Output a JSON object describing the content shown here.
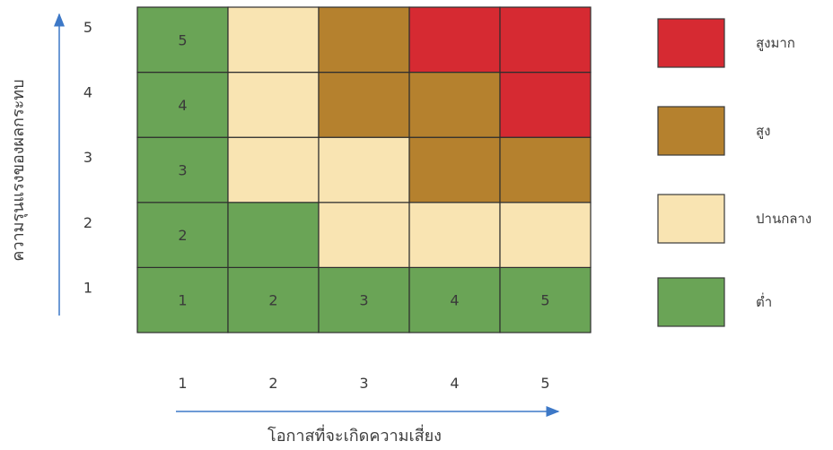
{
  "chart_data": {
    "type": "heatmap",
    "title": "",
    "xlabel": "โอกาสที่จะเกิดความเสี่ยง",
    "ylabel": "ความรุนแรงของผลกระทบ",
    "x_ticks": [
      "1",
      "2",
      "3",
      "4",
      "5"
    ],
    "y_ticks": [
      "1",
      "2",
      "3",
      "4",
      "5"
    ],
    "levels": [
      {
        "key": "very_high",
        "label": "สูงมาก",
        "color": "#d62a32"
      },
      {
        "key": "high",
        "label": "สูง",
        "color": "#b5812e"
      },
      {
        "key": "medium",
        "label": "ปานกลาง",
        "color": "#f9e4b2"
      },
      {
        "key": "low",
        "label": "ต่ำ",
        "color": "#6aa456"
      }
    ],
    "legend_position": "right",
    "grid": [
      [
        "low",
        "low",
        "low",
        "low",
        "low"
      ],
      [
        "low",
        "low",
        "medium",
        "medium",
        "medium"
      ],
      [
        "low",
        "medium",
        "medium",
        "high",
        "high"
      ],
      [
        "low",
        "medium",
        "high",
        "high",
        "very_high"
      ],
      [
        "low",
        "medium",
        "high",
        "very_high",
        "very_high"
      ]
    ],
    "cell_labels": [
      [
        "1",
        "2",
        "3",
        "4",
        "5"
      ],
      [
        "2",
        "",
        "",
        "",
        ""
      ],
      [
        "3",
        "",
        "",
        "",
        ""
      ],
      [
        "4",
        "",
        "",
        "",
        ""
      ],
      [
        "5",
        "",
        "",
        "",
        ""
      ]
    ]
  }
}
